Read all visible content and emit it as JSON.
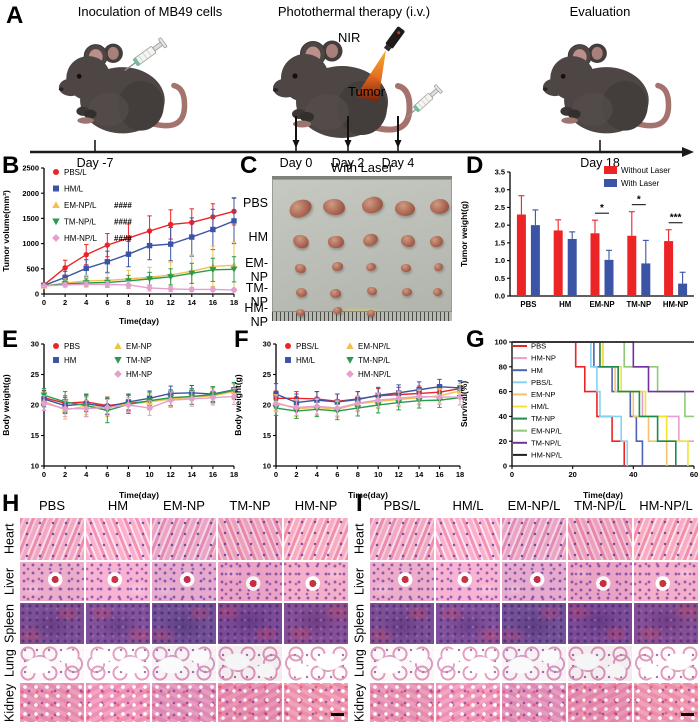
{
  "figure": {
    "panel_labels": {
      "A": "A",
      "B": "B",
      "C": "C",
      "D": "D",
      "E": "E",
      "F": "F",
      "G": "G",
      "H": "H",
      "I": "I"
    }
  },
  "panelA": {
    "steps": [
      {
        "title": "Inoculation of MB49 cells"
      },
      {
        "title": "Photothermal therapy (i.v.)",
        "nir_label": "NIR",
        "tumor_label": "Tumor"
      },
      {
        "title": "Evaluation"
      }
    ],
    "timeline": [
      {
        "label": "Day -7",
        "x": 95,
        "arrow": false
      },
      {
        "label": "Day 0",
        "x": 296,
        "arrow": true
      },
      {
        "label": "Day 2",
        "x": 348,
        "arrow": true
      },
      {
        "label": "Day 4",
        "x": 398,
        "arrow": true
      },
      {
        "label": "Day 18",
        "x": 600,
        "arrow": false
      }
    ]
  },
  "panelC": {
    "title": "With Laser",
    "rows": [
      {
        "label": "PBS",
        "tumor_count": 5,
        "w": 23,
        "h": 17
      },
      {
        "label": "HM",
        "tumor_count": 5,
        "w": 16,
        "h": 13
      },
      {
        "label": "EM-NP",
        "tumor_count": 5,
        "w": 11,
        "h": 9
      },
      {
        "label": "TM-NP",
        "tumor_count": 5,
        "w": 11,
        "h": 9
      },
      {
        "label": "HM-NP",
        "tumor_count": 3,
        "w": 9,
        "h": 7
      }
    ]
  },
  "histology": {
    "row_labels": [
      "Heart",
      "Liver",
      "Spleen",
      "Lung",
      "Kidney"
    ],
    "H": {
      "columns": [
        "PBS",
        "HM",
        "EM-NP",
        "TM-NP",
        "HM-NP"
      ]
    },
    "I": {
      "columns": [
        "PBS/L",
        "HM/L",
        "EM-NP/L",
        "TM-NP/L",
        "HM-NP/L"
      ]
    }
  },
  "chart_data": [
    {
      "id": "chartB",
      "type": "line",
      "xlabel": "Time(day)",
      "ylabel": "Tumor volume(mm³)",
      "xlim": [
        0,
        18
      ],
      "ylim": [
        0,
        2500
      ],
      "xticks": [
        0,
        2,
        4,
        6,
        8,
        10,
        12,
        14,
        16,
        18
      ],
      "yticks": [
        0,
        500,
        1000,
        1500,
        2000,
        2500
      ],
      "x": [
        0,
        2,
        4,
        6,
        8,
        10,
        12,
        14,
        16,
        18
      ],
      "series": [
        {
          "name": "PBS/L",
          "color": "#ec2426",
          "marker": "circle",
          "sig": "",
          "values": [
            180,
            520,
            780,
            970,
            1110,
            1250,
            1380,
            1420,
            1530,
            1640
          ],
          "errors": [
            40,
            150,
            200,
            230,
            280,
            300,
            290,
            270,
            260,
            270
          ]
        },
        {
          "name": "HM/L",
          "color": "#3b54a5",
          "marker": "square",
          "sig": "",
          "values": [
            170,
            330,
            510,
            640,
            790,
            960,
            990,
            1130,
            1280,
            1450
          ],
          "errors": [
            30,
            120,
            170,
            210,
            250,
            280,
            330,
            380,
            400,
            450
          ]
        },
        {
          "name": "EM-NP/L",
          "color": "#f2c14d",
          "marker": "triangle",
          "sig": "####",
          "values": [
            160,
            220,
            260,
            270,
            300,
            330,
            380,
            450,
            550,
            570
          ],
          "errors": [
            30,
            80,
            110,
            140,
            170,
            200,
            250,
            320,
            400,
            460
          ]
        },
        {
          "name": "TM-NP/L",
          "color": "#2a9a4d",
          "marker": "triangle-down",
          "sig": "####",
          "values": [
            160,
            200,
            220,
            230,
            260,
            300,
            340,
            410,
            480,
            490
          ],
          "errors": [
            30,
            60,
            80,
            90,
            110,
            130,
            160,
            200,
            230,
            250
          ]
        },
        {
          "name": "HM-NP/L",
          "color": "#e59fce",
          "marker": "diamond",
          "sig": "####",
          "values": [
            160,
            180,
            190,
            190,
            180,
            120,
            100,
            90,
            90,
            80
          ],
          "errors": [
            20,
            40,
            50,
            60,
            70,
            60,
            50,
            40,
            40,
            35
          ]
        }
      ]
    },
    {
      "id": "chartD",
      "type": "bar",
      "ylabel": "Tumor weight(g)",
      "ylim": [
        0,
        3.5
      ],
      "yticks": [
        0,
        0.5,
        1,
        1.5,
        2,
        2.5,
        3,
        3.5
      ],
      "categories": [
        "PBS",
        "HM",
        "EM-NP",
        "TM-NP",
        "HM-NP"
      ],
      "series": [
        {
          "name": "Without Laser",
          "color": "#ec2426",
          "values": [
            2.3,
            1.85,
            1.77,
            1.7,
            1.55
          ],
          "errors": [
            0.53,
            0.3,
            0.37,
            0.68,
            0.32
          ]
        },
        {
          "name": "With Laser",
          "color": "#3b54a5",
          "values": [
            2.0,
            1.61,
            1.02,
            0.92,
            0.35
          ],
          "errors": [
            0.43,
            0.2,
            0.27,
            0.65,
            0.32
          ]
        }
      ],
      "significance": [
        {
          "category": "EM-NP",
          "label": "*"
        },
        {
          "category": "TM-NP",
          "label": "*"
        },
        {
          "category": "HM-NP",
          "label": "***"
        }
      ]
    },
    {
      "id": "chartE",
      "type": "line",
      "xlabel": "Time(day)",
      "ylabel": "Body weight(g)",
      "xlim": [
        0,
        18
      ],
      "ylim": [
        10,
        30
      ],
      "xticks": [
        0,
        2,
        4,
        6,
        8,
        10,
        12,
        14,
        16,
        18
      ],
      "yticks": [
        10,
        15,
        20,
        25,
        30
      ],
      "x": [
        0,
        2,
        4,
        6,
        8,
        10,
        12,
        14,
        16,
        18
      ],
      "series": [
        {
          "name": "PBS",
          "color": "#ec2426",
          "marker": "circle",
          "sig": "",
          "values": [
            21.2,
            20.3,
            20.5,
            19.9,
            20.3,
            20.6,
            21.0,
            21.3,
            21.6,
            22.3
          ],
          "errors": [
            1.2,
            1.2,
            1.3,
            1.4,
            1.3,
            1.2,
            1.2,
            1.2,
            1.2,
            1.2
          ]
        },
        {
          "name": "HM",
          "color": "#3b54a5",
          "marker": "square",
          "sig": "",
          "values": [
            21.0,
            19.9,
            20.2,
            19.7,
            20.5,
            21.1,
            21.9,
            22.0,
            21.8,
            22.5
          ],
          "errors": [
            1.3,
            1.3,
            1.3,
            1.3,
            1.3,
            1.2,
            1.2,
            1.2,
            1.2,
            1.2
          ]
        },
        {
          "name": "EM-NP",
          "color": "#f2c14d",
          "marker": "triangle",
          "sig": "",
          "values": [
            20.6,
            19.2,
            19.8,
            19.5,
            20.2,
            20.5,
            21.0,
            21.3,
            21.5,
            22.2
          ],
          "errors": [
            1.4,
            1.5,
            1.4,
            1.4,
            1.3,
            1.3,
            1.2,
            1.2,
            1.3,
            1.3
          ]
        },
        {
          "name": "TM-NP",
          "color": "#2a9a4d",
          "marker": "triangle-down",
          "sig": "",
          "values": [
            21.6,
            20.5,
            19.9,
            19.1,
            20.1,
            20.7,
            21.2,
            21.4,
            21.7,
            22.4
          ],
          "errors": [
            1.1,
            1.7,
            1.8,
            2.0,
            1.5,
            1.4,
            1.3,
            1.3,
            1.3,
            1.3
          ]
        },
        {
          "name": "HM-NP",
          "color": "#e59fce",
          "marker": "diamond",
          "sig": "",
          "values": [
            20.3,
            19.4,
            19.4,
            19.6,
            20.0,
            19.5,
            20.8,
            21.0,
            21.2,
            21.4
          ],
          "errors": [
            1.2,
            1.3,
            1.3,
            1.3,
            1.2,
            1.2,
            1.2,
            1.2,
            1.2,
            1.3
          ]
        }
      ]
    },
    {
      "id": "chartF",
      "type": "line",
      "xlabel": "Time(day)",
      "ylabel": "Body weight(g)",
      "xlim": [
        0,
        18
      ],
      "ylim": [
        10,
        30
      ],
      "xticks": [
        0,
        2,
        4,
        6,
        8,
        10,
        12,
        14,
        16,
        18
      ],
      "yticks": [
        10,
        15,
        20,
        25,
        30
      ],
      "x": [
        0,
        2,
        4,
        6,
        8,
        10,
        12,
        14,
        16,
        18
      ],
      "series": [
        {
          "name": "PBS/L",
          "color": "#ec2426",
          "marker": "circle",
          "sig": "",
          "values": [
            21.1,
            21.1,
            21.0,
            20.6,
            21.0,
            21.5,
            21.7,
            21.9,
            22.1,
            22.7
          ],
          "errors": [
            1.2,
            1.1,
            1.2,
            1.2,
            1.2,
            1.2,
            1.2,
            1.2,
            1.2,
            1.2
          ]
        },
        {
          "name": "HM/L",
          "color": "#3b54a5",
          "marker": "square",
          "sig": "",
          "values": [
            21.8,
            20.4,
            20.8,
            20.5,
            20.9,
            21.6,
            22.0,
            22.5,
            23.0,
            22.8
          ],
          "errors": [
            1.7,
            1.4,
            1.4,
            1.3,
            1.3,
            1.3,
            1.3,
            1.3,
            1.2,
            1.2
          ]
        },
        {
          "name": "EM-NP/L",
          "color": "#f2c14d",
          "marker": "triangle",
          "sig": "",
          "values": [
            20.4,
            19.4,
            19.6,
            19.3,
            20.2,
            20.6,
            20.9,
            21.2,
            21.5,
            22.3
          ],
          "errors": [
            1.3,
            1.3,
            1.3,
            1.3,
            1.3,
            1.2,
            1.2,
            1.2,
            1.2,
            1.2
          ]
        },
        {
          "name": "TM-NP/L",
          "color": "#2a9a4d",
          "marker": "triangle-down",
          "sig": "",
          "values": [
            19.5,
            19.0,
            19.3,
            19.0,
            19.5,
            20.0,
            20.4,
            20.7,
            20.8,
            21.2
          ],
          "errors": [
            1.2,
            1.2,
            1.2,
            1.4,
            1.3,
            1.3,
            1.2,
            1.2,
            1.2,
            1.2
          ]
        },
        {
          "name": "HM-NP/L",
          "color": "#e59fce",
          "marker": "diamond",
          "sig": "",
          "values": [
            20.2,
            19.6,
            19.8,
            19.5,
            20.3,
            20.8,
            21.1,
            21.4,
            21.3,
            21.3
          ],
          "errors": [
            1.3,
            1.3,
            1.3,
            1.3,
            1.2,
            1.2,
            1.2,
            1.2,
            1.2,
            1.3
          ]
        }
      ]
    },
    {
      "id": "chartG",
      "type": "survival",
      "xlabel": "Time(day)",
      "ylabel": "Survival(%)",
      "xlim": [
        0,
        60
      ],
      "ylim": [
        0,
        100
      ],
      "xticks": [
        0,
        20,
        40,
        60
      ],
      "yticks": [
        0,
        20,
        40,
        60,
        80,
        100
      ],
      "series": [
        {
          "name": "PBS",
          "color": "#ec2426",
          "drops": [
            [
              21,
              80
            ],
            [
              24,
              60
            ],
            [
              28,
              40
            ],
            [
              33,
              20
            ],
            [
              37,
              0
            ]
          ]
        },
        {
          "name": "HM-NP",
          "color": "#e59fce",
          "drops": [
            [
              30,
              80
            ],
            [
              35,
              60
            ],
            [
              43,
              40
            ],
            [
              55,
              20
            ]
          ]
        },
        {
          "name": "HM",
          "color": "#4a63b8",
          "drops": [
            [
              27,
              80
            ],
            [
              33,
              60
            ],
            [
              39,
              40
            ],
            [
              41,
              20
            ],
            [
              43,
              0
            ]
          ]
        },
        {
          "name": "PBS/L",
          "color": "#85d2f2",
          "drops": [
            [
              26,
              80
            ],
            [
              28,
              60
            ],
            [
              29,
              40
            ],
            [
              36,
              20
            ],
            [
              38,
              0
            ]
          ]
        },
        {
          "name": "EM-NP",
          "color": "#f6c36c",
          "drops": [
            [
              29,
              80
            ],
            [
              34,
              60
            ],
            [
              40,
              40
            ],
            [
              45,
              20
            ],
            [
              51,
              0
            ]
          ]
        },
        {
          "name": "HM/L",
          "color": "#f3e62a",
          "drops": [
            [
              30,
              80
            ],
            [
              36,
              60
            ],
            [
              44,
              40
            ],
            [
              51,
              20
            ],
            [
              58,
              0
            ]
          ]
        },
        {
          "name": "TM-NP",
          "color": "#1e8b4c",
          "drops": [
            [
              29,
              80
            ],
            [
              35,
              60
            ],
            [
              42,
              40
            ],
            [
              48,
              20
            ],
            [
              54,
              0
            ]
          ]
        },
        {
          "name": "EM-NP/L",
          "color": "#90c978",
          "drops": [
            [
              37,
              80
            ],
            [
              48,
              60
            ],
            [
              57,
              40
            ]
          ]
        },
        {
          "name": "TM-NP/L",
          "color": "#7330a0",
          "drops": [
            [
              40,
              80
            ],
            [
              45,
              60
            ]
          ]
        },
        {
          "name": "HM-NP/L",
          "color": "#231f20",
          "drops": []
        }
      ]
    }
  ]
}
